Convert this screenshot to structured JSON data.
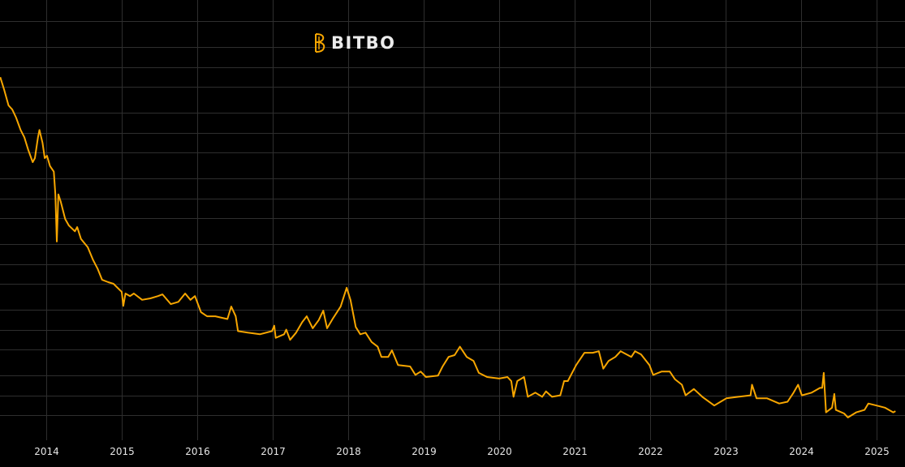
{
  "brand": {
    "name": "BITBO",
    "accent": "#f7a600"
  },
  "chart_data": {
    "type": "line",
    "title": "",
    "xlabel": "",
    "ylabel": "",
    "y_scale": "log",
    "y_tick_labels_shown": false,
    "grid": true,
    "background": "#000000",
    "x_ticks": [
      "2014",
      "2015",
      "2016",
      "2017",
      "2018",
      "2019",
      "2020",
      "2021",
      "2022",
      "2023",
      "2024",
      "2025"
    ],
    "xlim": [
      2013.39,
      2025.25
    ],
    "series": [
      {
        "color": "#f7a600",
        "points": [
          [
            2013.39,
            140000
          ],
          [
            2013.44,
            92000
          ],
          [
            2013.5,
            52000
          ],
          [
            2013.55,
            45000
          ],
          [
            2013.6,
            34000
          ],
          [
            2013.66,
            22000
          ],
          [
            2013.71,
            17000
          ],
          [
            2013.76,
            11000
          ],
          [
            2013.82,
            7100
          ],
          [
            2013.85,
            8200
          ],
          [
            2013.89,
            17000
          ],
          [
            2013.91,
            22000
          ],
          [
            2013.95,
            14000
          ],
          [
            2013.98,
            8200
          ],
          [
            2014.01,
            8900
          ],
          [
            2014.05,
            6200
          ],
          [
            2014.1,
            5100
          ],
          [
            2014.12,
            2300
          ],
          [
            2014.14,
            440
          ],
          [
            2014.16,
            2300
          ],
          [
            2014.19,
            1800
          ],
          [
            2014.25,
            970
          ],
          [
            2014.3,
            770
          ],
          [
            2014.38,
            630
          ],
          [
            2014.41,
            730
          ],
          [
            2014.46,
            480
          ],
          [
            2014.55,
            360
          ],
          [
            2014.62,
            230
          ],
          [
            2014.68,
            170
          ],
          [
            2014.74,
            115
          ],
          [
            2014.82,
            106
          ],
          [
            2014.89,
            100
          ],
          [
            2015.0,
            75
          ],
          [
            2015.02,
            46
          ],
          [
            2015.05,
            71
          ],
          [
            2015.11,
            65
          ],
          [
            2015.16,
            71
          ],
          [
            2015.27,
            57
          ],
          [
            2015.38,
            60
          ],
          [
            2015.48,
            65
          ],
          [
            2015.54,
            69
          ],
          [
            2015.65,
            49
          ],
          [
            2015.75,
            53
          ],
          [
            2015.84,
            71
          ],
          [
            2015.91,
            57
          ],
          [
            2015.97,
            65
          ],
          [
            2016.05,
            37
          ],
          [
            2016.13,
            32
          ],
          [
            2016.24,
            32
          ],
          [
            2016.4,
            29
          ],
          [
            2016.45,
            45
          ],
          [
            2016.51,
            32
          ],
          [
            2016.54,
            19
          ],
          [
            2016.67,
            18
          ],
          [
            2016.83,
            17
          ],
          [
            2016.99,
            19
          ],
          [
            2017.02,
            23
          ],
          [
            2017.04,
            15
          ],
          [
            2017.15,
            17
          ],
          [
            2017.18,
            20
          ],
          [
            2017.23,
            14
          ],
          [
            2017.31,
            18
          ],
          [
            2017.39,
            26
          ],
          [
            2017.45,
            32
          ],
          [
            2017.53,
            21
          ],
          [
            2017.61,
            28
          ],
          [
            2017.67,
            39
          ],
          [
            2017.72,
            21
          ],
          [
            2017.8,
            30
          ],
          [
            2017.9,
            45
          ],
          [
            2017.98,
            87
          ],
          [
            2018.03,
            57
          ],
          [
            2018.1,
            22
          ],
          [
            2018.16,
            17
          ],
          [
            2018.23,
            18
          ],
          [
            2018.31,
            13
          ],
          [
            2018.39,
            11
          ],
          [
            2018.44,
            7.7
          ],
          [
            2018.53,
            7.7
          ],
          [
            2018.58,
            9.7
          ],
          [
            2018.66,
            5.8
          ],
          [
            2018.82,
            5.5
          ],
          [
            2018.89,
            4.1
          ],
          [
            2018.96,
            4.6
          ],
          [
            2019.03,
            3.8
          ],
          [
            2019.19,
            4.0
          ],
          [
            2019.25,
            5.5
          ],
          [
            2019.33,
            7.7
          ],
          [
            2019.41,
            8.2
          ],
          [
            2019.48,
            11
          ],
          [
            2019.57,
            7.7
          ],
          [
            2019.66,
            6.7
          ],
          [
            2019.73,
            4.4
          ],
          [
            2019.84,
            3.8
          ],
          [
            2020.0,
            3.6
          ],
          [
            2020.11,
            3.8
          ],
          [
            2020.16,
            3.3
          ],
          [
            2020.19,
            1.9
          ],
          [
            2020.24,
            3.3
          ],
          [
            2020.33,
            3.8
          ],
          [
            2020.38,
            1.9
          ],
          [
            2020.48,
            2.2
          ],
          [
            2020.57,
            1.9
          ],
          [
            2020.62,
            2.3
          ],
          [
            2020.7,
            1.9
          ],
          [
            2020.81,
            2.0
          ],
          [
            2020.86,
            3.3
          ],
          [
            2020.91,
            3.3
          ],
          [
            2021.02,
            5.8
          ],
          [
            2021.08,
            7.3
          ],
          [
            2021.13,
            8.9
          ],
          [
            2021.24,
            8.9
          ],
          [
            2021.32,
            9.4
          ],
          [
            2021.38,
            5.1
          ],
          [
            2021.45,
            6.7
          ],
          [
            2021.54,
            7.7
          ],
          [
            2021.61,
            9.4
          ],
          [
            2021.75,
            7.7
          ],
          [
            2021.8,
            9.4
          ],
          [
            2021.88,
            8.4
          ],
          [
            2021.99,
            5.8
          ],
          [
            2022.04,
            4.1
          ],
          [
            2022.15,
            4.6
          ],
          [
            2022.26,
            4.6
          ],
          [
            2022.33,
            3.5
          ],
          [
            2022.42,
            2.9
          ],
          [
            2022.47,
            2.0
          ],
          [
            2022.58,
            2.5
          ],
          [
            2022.69,
            1.9
          ],
          [
            2022.85,
            1.4
          ],
          [
            2023.01,
            1.8
          ],
          [
            2023.17,
            1.9
          ],
          [
            2023.33,
            2.0
          ],
          [
            2023.35,
            2.9
          ],
          [
            2023.41,
            1.8
          ],
          [
            2023.55,
            1.8
          ],
          [
            2023.71,
            1.5
          ],
          [
            2023.82,
            1.6
          ],
          [
            2023.9,
            2.2
          ],
          [
            2023.96,
            2.9
          ],
          [
            2024.01,
            2.0
          ],
          [
            2024.14,
            2.2
          ],
          [
            2024.25,
            2.6
          ],
          [
            2024.28,
            2.6
          ],
          [
            2024.3,
            4.4
          ],
          [
            2024.33,
            1.1
          ],
          [
            2024.41,
            1.3
          ],
          [
            2024.44,
            2.1
          ],
          [
            2024.46,
            1.2
          ],
          [
            2024.57,
            1.06
          ],
          [
            2024.62,
            0.92
          ],
          [
            2024.73,
            1.1
          ],
          [
            2024.84,
            1.2
          ],
          [
            2024.89,
            1.5
          ],
          [
            2025.0,
            1.4
          ],
          [
            2025.11,
            1.3
          ],
          [
            2025.22,
            1.1
          ],
          [
            2025.25,
            1.15
          ]
        ]
      }
    ]
  }
}
